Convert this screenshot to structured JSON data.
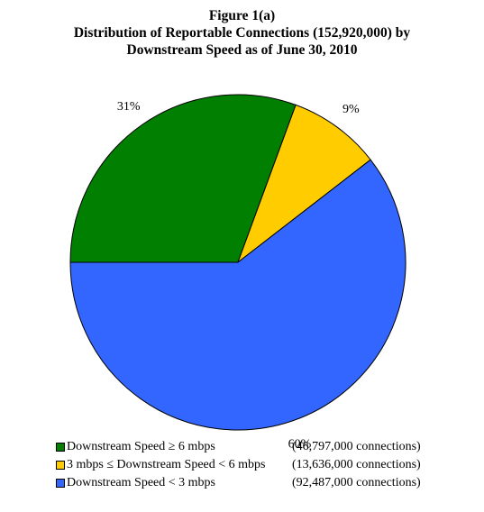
{
  "title": {
    "line1": "Figure 1(a)",
    "line2": "Distribution of Reportable Connections (152,920,000) by",
    "line3": "Downstream Speed as of June 30, 2010"
  },
  "chart_data": {
    "type": "pie",
    "slices": [
      {
        "label": "Downstream Speed ≥ 6 mbps",
        "percent_label": "31%",
        "value": 46797000,
        "count_label": "(46,797,000 connections)",
        "color": "#007F00"
      },
      {
        "label": "3 mbps ≤ Downstream Speed < 6 mbps",
        "percent_label": "9%",
        "value": 13636000,
        "count_label": "(13,636,000 connections)",
        "color": "#FFCC00"
      },
      {
        "label": "Downstream Speed < 3 mbps",
        "percent_label": "60%",
        "value": 92487000,
        "count_label": "(92,487,000 connections)",
        "color": "#3366FF"
      }
    ],
    "start_angle_deg": 180,
    "direction": "clockwise",
    "legend_position": "bottom-left"
  }
}
